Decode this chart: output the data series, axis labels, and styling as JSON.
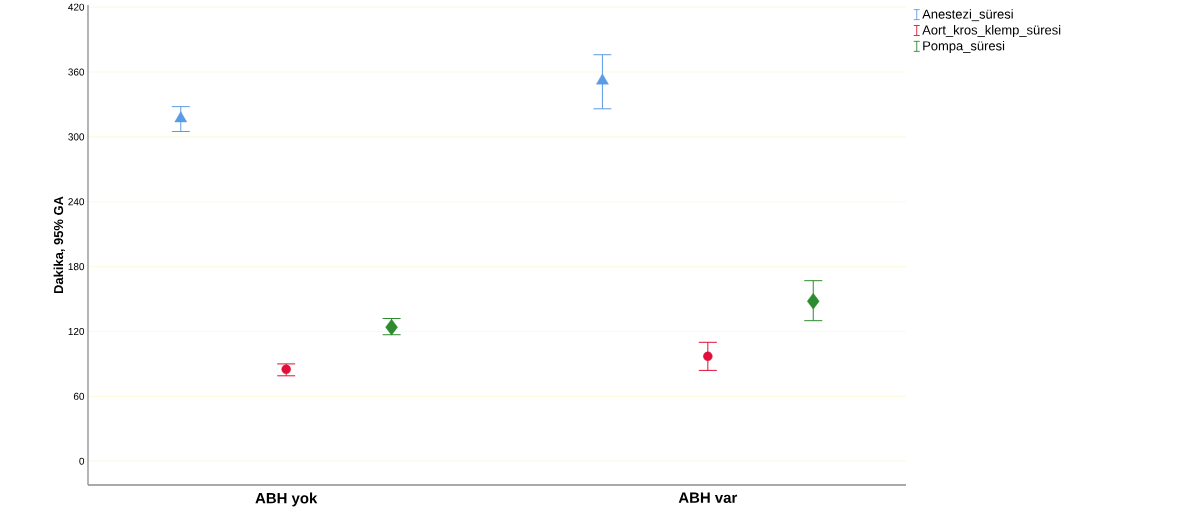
{
  "chart_data": {
    "type": "scatter",
    "ylabel": "Dakika, 95% GA",
    "categories": [
      "ABH yok",
      "ABH var"
    ],
    "series": [
      {
        "name": "Anestezi_süresi",
        "color": "#5b9be6",
        "marker": "triangle",
        "values": [
          317,
          352
        ],
        "errors": [
          [
            305,
            328
          ],
          [
            326,
            376
          ]
        ]
      },
      {
        "name": "Aort_kros_klemp_süresi",
        "color": "#e0103a",
        "marker": "circle",
        "values": [
          85,
          97
        ],
        "errors": [
          [
            79,
            90
          ],
          [
            84,
            110
          ]
        ]
      },
      {
        "name": "Pompa_süresi",
        "color": "#2e8b2e",
        "marker": "diamond",
        "values": [
          124,
          148
        ],
        "errors": [
          [
            117,
            132
          ],
          [
            130,
            167
          ]
        ]
      }
    ],
    "ylim": [
      -22,
      422
    ],
    "yticks": [
      0,
      60,
      120,
      180,
      240,
      300,
      360,
      420
    ],
    "grid": "y",
    "legend": "top right"
  }
}
